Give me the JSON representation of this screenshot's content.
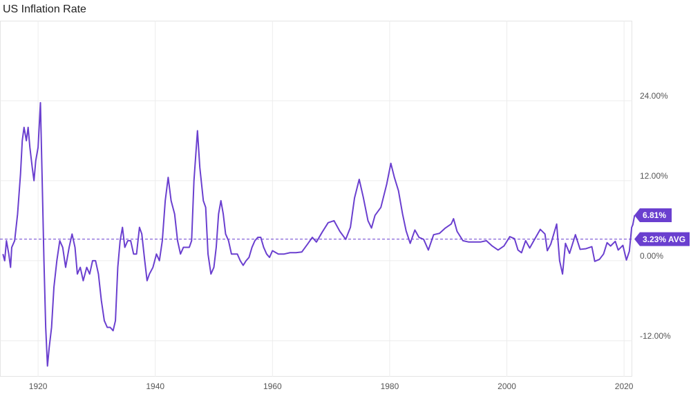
{
  "chart_data": {
    "type": "line",
    "title": "US Inflation Rate",
    "color": "#6a3fcf",
    "xlim": [
      1913.5,
      2021.4
    ],
    "ylim": [
      -17.4,
      36
    ],
    "xticks": [
      1920,
      1940,
      1960,
      1980,
      2000,
      2020
    ],
    "yticks": [
      {
        "value": 24,
        "label": "24.00%"
      },
      {
        "value": 12,
        "label": "12.00%"
      },
      {
        "value": 0,
        "label": "0.00%"
      },
      {
        "value": -12,
        "label": "-12.00%"
      }
    ],
    "grid": true,
    "reference_line": {
      "value": 3.23,
      "label": "3.23% AVG"
    },
    "end_label": {
      "value": 6.81,
      "label": "6.81%"
    },
    "x": [
      1914.0,
      1914.3,
      1914.6,
      1915.0,
      1915.3,
      1915.5,
      1916.0,
      1916.5,
      1917.0,
      1917.3,
      1917.6,
      1918.0,
      1918.3,
      1918.6,
      1919.0,
      1919.3,
      1919.6,
      1920.0,
      1920.4,
      1920.7,
      1921.0,
      1921.3,
      1921.6,
      1921.9,
      1922.3,
      1922.7,
      1923.2,
      1923.7,
      1924.2,
      1924.7,
      1925.3,
      1925.8,
      1926.3,
      1926.7,
      1927.2,
      1927.7,
      1928.3,
      1928.8,
      1929.3,
      1929.8,
      1930.3,
      1930.8,
      1931.3,
      1931.8,
      1932.3,
      1932.8,
      1933.2,
      1933.6,
      1934.0,
      1934.4,
      1934.8,
      1935.3,
      1935.8,
      1936.3,
      1936.8,
      1937.3,
      1937.7,
      1938.2,
      1938.6,
      1939.0,
      1939.6,
      1940.2,
      1940.7,
      1941.2,
      1941.7,
      1942.2,
      1942.7,
      1943.3,
      1943.8,
      1944.3,
      1944.8,
      1945.3,
      1945.8,
      1946.2,
      1946.6,
      1947.2,
      1947.6,
      1948.2,
      1948.6,
      1949.0,
      1949.5,
      1950.0,
      1950.4,
      1950.8,
      1951.2,
      1951.6,
      1952.0,
      1952.5,
      1953.0,
      1953.5,
      1954.0,
      1954.5,
      1955.0,
      1955.5,
      1956.0,
      1956.5,
      1957.0,
      1957.5,
      1958.0,
      1958.5,
      1959.0,
      1959.5,
      1960.0,
      1961.0,
      1962.0,
      1963.0,
      1964.0,
      1965.0,
      1966.0,
      1966.8,
      1967.5,
      1968.5,
      1969.5,
      1970.5,
      1971.5,
      1972.5,
      1973.3,
      1974.0,
      1974.8,
      1975.5,
      1976.3,
      1976.9,
      1977.5,
      1978.5,
      1979.5,
      1980.2,
      1980.8,
      1981.5,
      1982.2,
      1982.8,
      1983.5,
      1984.3,
      1985.0,
      1985.8,
      1986.6,
      1987.5,
      1988.5,
      1989.5,
      1990.5,
      1990.9,
      1991.5,
      1992.5,
      1993.5,
      1994.5,
      1995.5,
      1996.5,
      1997.5,
      1998.5,
      1999.5,
      2000.5,
      2001.3,
      2001.9,
      2002.5,
      2003.2,
      2003.9,
      2004.6,
      2005.7,
      2006.5,
      2006.9,
      2007.5,
      2008.5,
      2009.0,
      2009.5,
      2010.0,
      2010.7,
      2011.7,
      2012.5,
      2013.5,
      2014.5,
      2015.0,
      2015.8,
      2016.5,
      2017.1,
      2017.7,
      2018.5,
      2019.0,
      2019.8,
      2020.4,
      2020.9,
      2021.3,
      2021.5,
      2021.8
    ],
    "values": [
      1.0,
      0,
      3,
      1,
      -1,
      2,
      3,
      7,
      13,
      18,
      20,
      18,
      20,
      17,
      14,
      12,
      15,
      17,
      23.7,
      12,
      0,
      -10,
      -15.8,
      -13,
      -10,
      -4,
      0,
      3,
      2,
      -1,
      2,
      4,
      2,
      -2,
      -1,
      -3,
      -1,
      -2,
      0,
      0,
      -2,
      -6,
      -9,
      -10,
      -10,
      -10.5,
      -9,
      -1,
      3,
      5,
      2,
      3,
      3,
      1,
      1,
      5,
      4,
      0,
      -3,
      -2,
      -1,
      1,
      0,
      3,
      9,
      12.5,
      9,
      7,
      3,
      1,
      2,
      2,
      2,
      3,
      12,
      19.5,
      14,
      9,
      8,
      1,
      -2,
      -1,
      2,
      7,
      9,
      7,
      4,
      3,
      1,
      1,
      1,
      0,
      -0.7,
      0,
      0.5,
      2,
      3,
      3.5,
      3.5,
      2,
      1,
      0.5,
      1.5,
      1,
      1,
      1.2,
      1.2,
      1.3,
      2.5,
      3.5,
      2.8,
      4.3,
      5.7,
      6,
      4.4,
      3.2,
      5,
      9.4,
      12.2,
      9.5,
      6,
      4.9,
      6.8,
      8,
      11.5,
      14.6,
      12.5,
      10.5,
      7,
      4.5,
      2.6,
      4.6,
      3.5,
      3.2,
      1.6,
      3.9,
      4.1,
      4.9,
      5.5,
      6.3,
      4.4,
      3.0,
      2.8,
      2.8,
      2.8,
      3,
      2.2,
      1.6,
      2.2,
      3.6,
      3.3,
      1.6,
      1.2,
      3.0,
      1.9,
      3,
      4.7,
      4,
      1.5,
      2.5,
      5.5,
      0,
      -2,
      2.6,
      1.1,
      3.9,
      1.7,
      1.8,
      2.1,
      -0.1,
      0.2,
      1,
      2.7,
      2.2,
      2.9,
      1.6,
      2.3,
      0.1,
      1.4,
      5,
      5.4,
      6.81
    ]
  }
}
